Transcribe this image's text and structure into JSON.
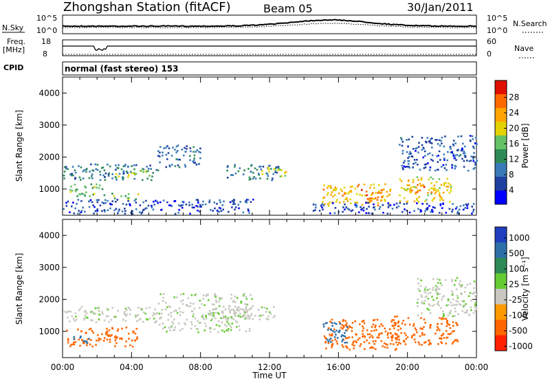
{
  "header": {
    "station": "Zhongshan Station (fitACF)",
    "beam": "Beam 05",
    "date": "30/Jan/2011"
  },
  "mini_panels": {
    "nsky_label": "N.Sky",
    "nsky_ticks": [
      "10^5",
      "10^0"
    ],
    "nsearch_label": "N.Search",
    "nsearch_ticks": [
      "10^5",
      "10^0"
    ],
    "freq_label_1": "Freq.",
    "freq_label_2": "[MHz]",
    "freq_ticks": [
      "18",
      "8"
    ],
    "nave_label": "Nave",
    "nave_ticks": [
      "60",
      "0"
    ],
    "cpid_label": "CPID",
    "cpid_text": "normal (fast stereo) 153"
  },
  "axes": {
    "x_ticks": [
      "00:00",
      "04:00",
      "08:00",
      "12:00",
      "16:00",
      "20:00",
      "00:00"
    ],
    "x_label": "Time UT",
    "y_label": "Slant Range [km]",
    "y_ticks": [
      "1000",
      "2000",
      "3000",
      "4000"
    ],
    "y_range_km": [
      180,
      4500
    ],
    "x_range_hours": [
      0,
      24
    ]
  },
  "power_bar": {
    "label": "Power [dB]",
    "ticks": [
      "4",
      "8",
      "12",
      "16",
      "20",
      "24",
      "28"
    ],
    "colors": [
      "#0000ff",
      "#1f3fa0",
      "#3a7ab8",
      "#2e8b57",
      "#66c266",
      "#e3d100",
      "#ffa500",
      "#ff6a00",
      "#e01000"
    ]
  },
  "velocity_bar": {
    "label": "Velocity [m s⁻¹]",
    "ticks": [
      "1000",
      "500",
      "100",
      "25",
      "-25",
      "-100",
      "-500",
      "-1000"
    ],
    "colors": [
      "#1f3fbf",
      "#2e6fa8",
      "#2e8b57",
      "#66cc33",
      "#c8c8c0",
      "#ff9900",
      "#ff6600",
      "#ff2000"
    ]
  },
  "chart_data": [
    {
      "type": "heatmap",
      "title": "Power",
      "xlabel": "Time UT",
      "ylabel": "Slant Range [km]",
      "xlim": [
        0,
        24
      ],
      "ylim": [
        180,
        4500
      ],
      "colorbar_label": "Power [dB]",
      "blobs": [
        {
          "t0": 0.0,
          "t1": 5.5,
          "r0": 1300,
          "r1": 1800,
          "value": 10
        },
        {
          "t0": 0.4,
          "t1": 2.5,
          "r0": 800,
          "r1": 1200,
          "value": 16
        },
        {
          "t0": 3.0,
          "t1": 5.2,
          "r0": 1350,
          "r1": 1600,
          "value": 18
        },
        {
          "t0": 2.8,
          "t1": 4.4,
          "r0": 700,
          "r1": 900,
          "value": 16
        },
        {
          "t0": 5.5,
          "t1": 8.0,
          "r0": 1700,
          "r1": 2400,
          "value": 8
        },
        {
          "t0": 0.0,
          "t1": 11.0,
          "r0": 250,
          "r1": 700,
          "value": 6
        },
        {
          "t0": 9.5,
          "t1": 12.5,
          "r0": 1300,
          "r1": 1800,
          "value": 10
        },
        {
          "t0": 11.5,
          "t1": 13.0,
          "r0": 1400,
          "r1": 1700,
          "value": 18
        },
        {
          "t0": 15.0,
          "t1": 19.0,
          "r0": 500,
          "r1": 1200,
          "value": 22
        },
        {
          "t0": 17.2,
          "t1": 18.5,
          "r0": 650,
          "r1": 1000,
          "value": 28
        },
        {
          "t0": 19.5,
          "t1": 22.5,
          "r0": 600,
          "r1": 1400,
          "value": 20
        },
        {
          "t0": 20.0,
          "t1": 21.5,
          "r0": 900,
          "r1": 1200,
          "value": 26
        },
        {
          "t0": 19.5,
          "t1": 24.0,
          "r0": 1600,
          "r1": 2700,
          "value": 7
        },
        {
          "t0": 14.5,
          "t1": 24.0,
          "r0": 250,
          "r1": 600,
          "value": 5
        }
      ]
    },
    {
      "type": "heatmap",
      "title": "Velocity",
      "xlabel": "Time UT",
      "ylabel": "Slant Range [km]",
      "xlim": [
        0,
        24
      ],
      "ylim": [
        180,
        4500
      ],
      "colorbar_label": "Velocity [m s⁻¹]",
      "blobs": [
        {
          "t0": 0.0,
          "t1": 5.5,
          "r0": 1300,
          "r1": 1800,
          "value": 0
        },
        {
          "t0": 0.2,
          "t1": 4.3,
          "r0": 550,
          "r1": 1150,
          "value": -300
        },
        {
          "t0": 0.6,
          "t1": 1.6,
          "r0": 650,
          "r1": 900,
          "value": 150
        },
        {
          "t0": 5.5,
          "t1": 11.0,
          "r0": 1000,
          "r1": 2200,
          "value": 0
        },
        {
          "t0": 9.0,
          "t1": 12.5,
          "r0": 1400,
          "r1": 1800,
          "value": 0
        },
        {
          "t0": 15.0,
          "t1": 19.5,
          "r0": 450,
          "r1": 1400,
          "value": -250
        },
        {
          "t0": 15.0,
          "t1": 16.5,
          "r0": 600,
          "r1": 1300,
          "value": 300
        },
        {
          "t0": 19.0,
          "t1": 23.0,
          "r0": 600,
          "r1": 1500,
          "value": -150
        },
        {
          "t0": 20.5,
          "t1": 24.0,
          "r0": 1500,
          "r1": 2700,
          "value": 0
        }
      ]
    }
  ]
}
